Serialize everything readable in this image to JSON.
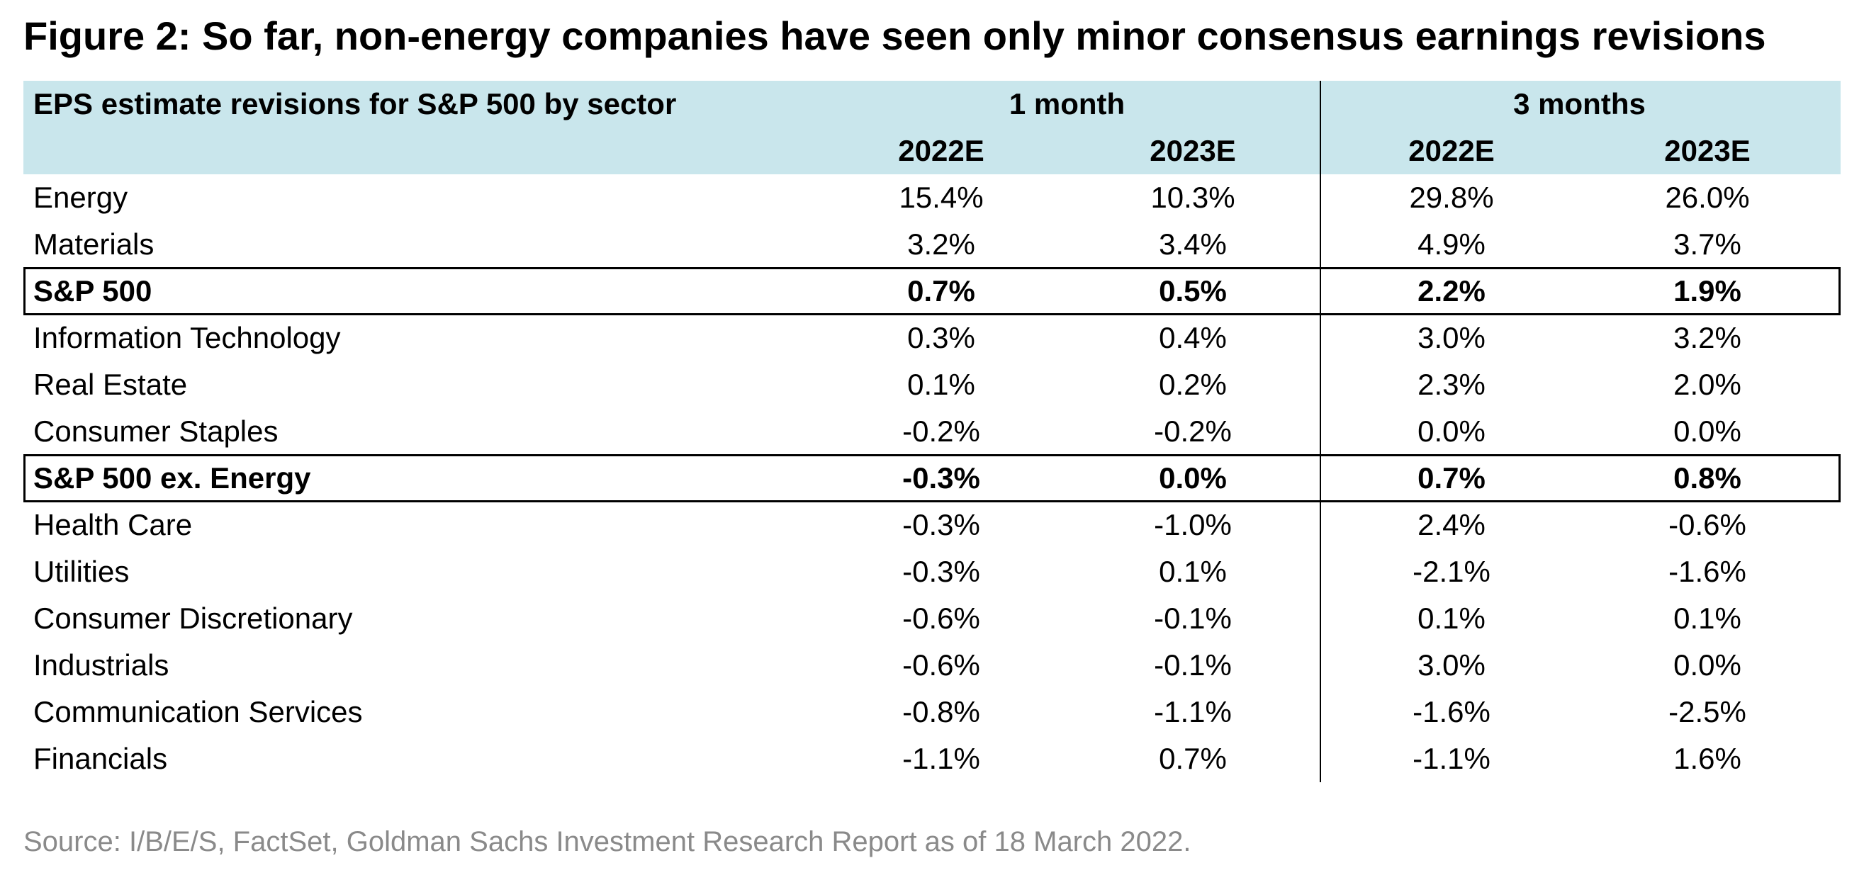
{
  "title": "Figure 2: So far, non-energy companies have seen only minor consensus earnings revisions",
  "header": {
    "row_label": "EPS estimate revisions for S&P 500 by sector",
    "group1": "1 month",
    "group2": "3 months",
    "columns": [
      "2022E",
      "2023E",
      "2022E",
      "2023E"
    ],
    "band_color": "#c9e6ec"
  },
  "chart_data": {
    "type": "table",
    "title": "Figure 2: So far, non-energy companies have seen only minor consensus earnings revisions",
    "column_groups": [
      {
        "name": "1 month",
        "columns": [
          "2022E",
          "2023E"
        ]
      },
      {
        "name": "3 months",
        "columns": [
          "2022E",
          "2023E"
        ]
      }
    ],
    "rows": [
      {
        "label": "Energy",
        "values": [
          "15.4%",
          "10.3%",
          "29.8%",
          "26.0%"
        ],
        "highlight": false
      },
      {
        "label": "Materials",
        "values": [
          "3.2%",
          "3.4%",
          "4.9%",
          "3.7%"
        ],
        "highlight": false
      },
      {
        "label": "S&P 500",
        "values": [
          "0.7%",
          "0.5%",
          "2.2%",
          "1.9%"
        ],
        "highlight": true
      },
      {
        "label": "Information Technology",
        "values": [
          "0.3%",
          "0.4%",
          "3.0%",
          "3.2%"
        ],
        "highlight": false
      },
      {
        "label": "Real Estate",
        "values": [
          "0.1%",
          "0.2%",
          "2.3%",
          "2.0%"
        ],
        "highlight": false
      },
      {
        "label": "Consumer Staples",
        "values": [
          "-0.2%",
          "-0.2%",
          "0.0%",
          "0.0%"
        ],
        "highlight": false
      },
      {
        "label": "S&P 500 ex. Energy",
        "values": [
          "-0.3%",
          "0.0%",
          "0.7%",
          "0.8%"
        ],
        "highlight": true
      },
      {
        "label": "Health Care",
        "values": [
          "-0.3%",
          "-1.0%",
          "2.4%",
          "-0.6%"
        ],
        "highlight": false
      },
      {
        "label": "Utilities",
        "values": [
          "-0.3%",
          "0.1%",
          "-2.1%",
          "-1.6%"
        ],
        "highlight": false
      },
      {
        "label": "Consumer Discretionary",
        "values": [
          "-0.6%",
          "-0.1%",
          "0.1%",
          "0.1%"
        ],
        "highlight": false
      },
      {
        "label": "Industrials",
        "values": [
          "-0.6%",
          "-0.1%",
          "3.0%",
          "0.0%"
        ],
        "highlight": false
      },
      {
        "label": "Communication Services",
        "values": [
          "-0.8%",
          "-1.1%",
          "-1.6%",
          "-2.5%"
        ],
        "highlight": false
      },
      {
        "label": "Financials",
        "values": [
          "-1.1%",
          "0.7%",
          "-1.1%",
          "1.6%"
        ],
        "highlight": false
      }
    ]
  },
  "source": "Source: I/B/E/S, FactSet, Goldman Sachs Investment Research Report as of 18 March 2022."
}
